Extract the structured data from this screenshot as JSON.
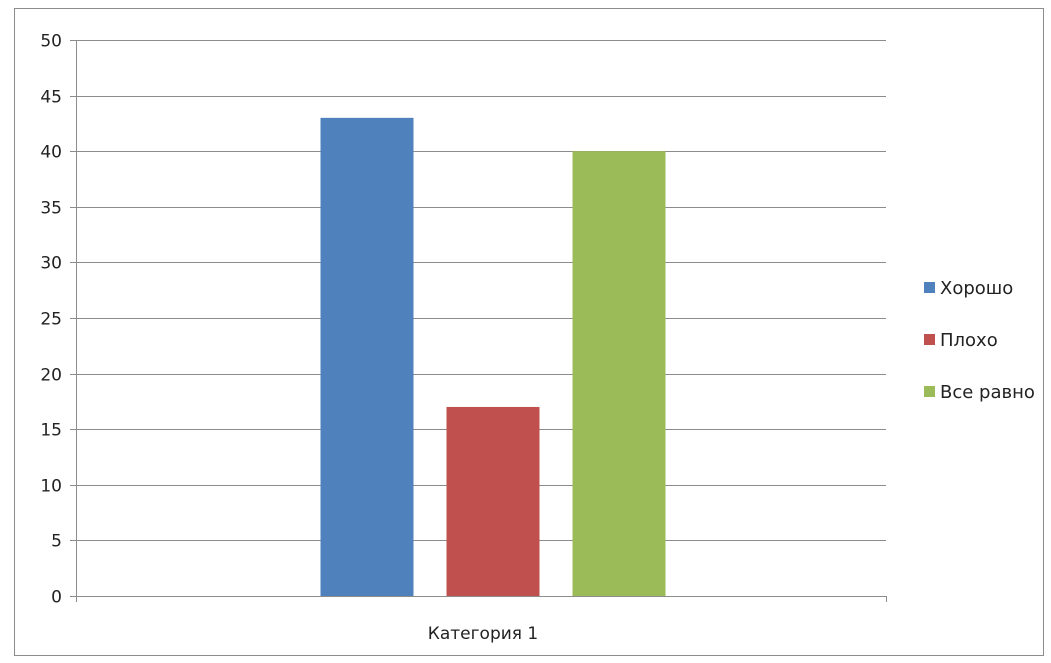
{
  "chart_data": {
    "type": "bar",
    "categories": [
      "Категория 1"
    ],
    "series": [
      {
        "name": "Хорошо",
        "values": [
          43
        ],
        "color": "#4f81bd"
      },
      {
        "name": "Плохо",
        "values": [
          17
        ],
        "color": "#c0504d"
      },
      {
        "name": "Все равно",
        "values": [
          40
        ],
        "color": "#9bbb59"
      }
    ],
    "ylim": [
      0,
      50
    ],
    "yticks": [
      0,
      5,
      10,
      15,
      20,
      25,
      30,
      35,
      40,
      45,
      50
    ],
    "grid": true,
    "legend": "right"
  }
}
